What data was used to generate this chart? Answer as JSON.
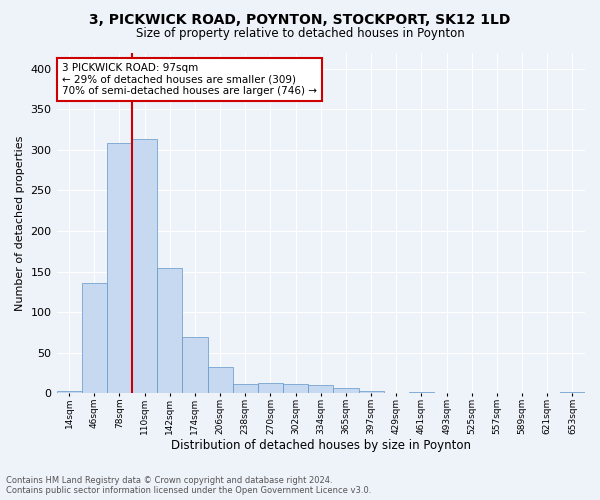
{
  "title": "3, PICKWICK ROAD, POYNTON, STOCKPORT, SK12 1LD",
  "subtitle": "Size of property relative to detached houses in Poynton",
  "xlabel": "Distribution of detached houses by size in Poynton",
  "ylabel": "Number of detached properties",
  "bin_labels": [
    "14sqm",
    "46sqm",
    "78sqm",
    "110sqm",
    "142sqm",
    "174sqm",
    "206sqm",
    "238sqm",
    "270sqm",
    "302sqm",
    "334sqm",
    "365sqm",
    "397sqm",
    "429sqm",
    "461sqm",
    "493sqm",
    "525sqm",
    "557sqm",
    "589sqm",
    "621sqm",
    "653sqm"
  ],
  "bar_heights": [
    3,
    136,
    308,
    313,
    155,
    70,
    33,
    12,
    13,
    11,
    10,
    7,
    3,
    0,
    2,
    1,
    0,
    0,
    0,
    0,
    2
  ],
  "bar_color": "#c6d9f1",
  "bar_edge_color": "#6096c8",
  "property_line_bin": 2.5,
  "property_label": "3 PICKWICK ROAD: 97sqm",
  "annotation_line1": "← 29% of detached houses are smaller (309)",
  "annotation_line2": "70% of semi-detached houses are larger (746) →",
  "annotation_box_color": "#cc0000",
  "ylim": [
    0,
    420
  ],
  "yticks": [
    0,
    50,
    100,
    150,
    200,
    250,
    300,
    350,
    400
  ],
  "footer_line1": "Contains HM Land Registry data © Crown copyright and database right 2024.",
  "footer_line2": "Contains public sector information licensed under the Open Government Licence v3.0.",
  "background_color": "#eef2f9",
  "grid_color": "#ffffff"
}
